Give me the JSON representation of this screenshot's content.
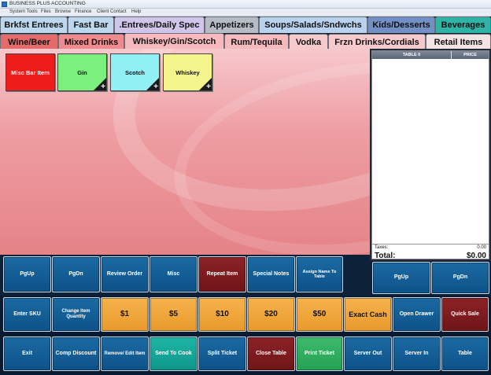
{
  "window": {
    "title": "BUSINESS PLUS ACCOUNTING"
  },
  "menu": [
    "System Tools",
    "Files",
    "Browse",
    "Finance",
    "Client Contact",
    "Help"
  ],
  "category_tabs_row1": [
    {
      "label": "Brkfst Entrees",
      "color": "#bdd7ee"
    },
    {
      "label": "Fast Bar",
      "color": "#bdd7ee"
    },
    {
      "label": ".Entrees/Daily Spec",
      "color": "#cfc6ea",
      "active": true
    },
    {
      "label": "Appetizers",
      "color": "#b6bcc6"
    },
    {
      "label": "Soups/Salads/Sndwchs",
      "color": "#b9d2f0"
    },
    {
      "label": "Kids/Desserts",
      "color": "#7290c6"
    },
    {
      "label": "Beverages",
      "color": "#2fb3a6"
    }
  ],
  "category_tabs_row2": [
    {
      "label": "Wine/Beer",
      "color": "#e56a6a"
    },
    {
      "label": "Mixed Drinks",
      "color": "#ef8a8e"
    },
    {
      "label": "Whiskey/Gin/Scotch",
      "color": "#f6b9bd",
      "active": true
    },
    {
      "label": "Rum/Tequila",
      "color": "#f6b9bd"
    },
    {
      "label": "Vodka",
      "color": "#f6c9cc"
    },
    {
      "label": "Frzn Drinks/Cordials",
      "color": "#f6c9cc"
    },
    {
      "label": "Retail Items",
      "color": "#f3e3e4"
    }
  ],
  "items": [
    {
      "label": "Misc Bar Item",
      "color": "#ef1c1c",
      "text_color": "#ffffff",
      "has_plus": false
    },
    {
      "label": "Gin",
      "color": "#7cf07c",
      "text_color": "#111111",
      "has_plus": true
    },
    {
      "label": "Scotch",
      "color": "#90f0f4",
      "text_color": "#111111",
      "has_plus": true
    },
    {
      "label": "Whiskey",
      "color": "#f4f48c",
      "text_color": "#111111",
      "has_plus": true
    }
  ],
  "receipt": {
    "col_item": "TABLE 0",
    "col_price": "PRICE",
    "taxes_label": "Taxes:",
    "taxes_value": "0.00",
    "total_label": "Total:",
    "total_value": "$0.00",
    "pgup": "PgUp",
    "pgdn": "PgDn"
  },
  "action_row": [
    "PgUp",
    "PgDn",
    "Review Order",
    "Misc",
    "Repeat Item",
    "Special Notes",
    "Assign Name To Table"
  ],
  "keypad_row": [
    "Enter SKU",
    "Change Item Quantity",
    "$1",
    "$5",
    "$10",
    "$20",
    "$50",
    "Exact Cash",
    "Open Drawer",
    "Quick Sale"
  ],
  "bottom_row": [
    "Exit",
    "Comp Discount",
    "Remove/ Edit Item",
    "Send To Cook",
    "Split Ticket",
    "Close Table",
    "Print Ticket",
    "Server Out",
    "Server  In",
    "Table"
  ]
}
